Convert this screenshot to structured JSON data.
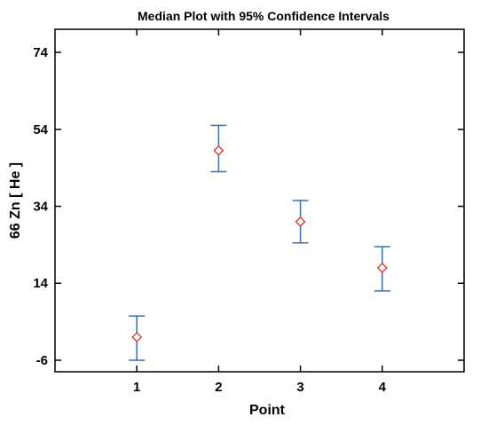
{
  "chart_data": {
    "type": "scatter",
    "title": "Median Plot with 95% Confidence Intervals",
    "xlabel": "Point",
    "ylabel": "66 Zn [ He ]",
    "xlim": [
      0,
      5
    ],
    "ylim": [
      -9,
      80
    ],
    "x_ticks": [
      "1",
      "2",
      "3",
      "4"
    ],
    "y_ticks": [
      "-6",
      "14",
      "34",
      "54",
      "74"
    ],
    "grid": false,
    "series": [
      {
        "points": [
          {
            "x": 1,
            "median": 0,
            "lower": -6,
            "upper": 5.5
          },
          {
            "x": 2,
            "median": 48.5,
            "lower": 43,
            "upper": 55
          },
          {
            "x": 3,
            "median": 30,
            "lower": 24.5,
            "upper": 35.5
          },
          {
            "x": 4,
            "median": 18,
            "lower": 12,
            "upper": 23.5
          }
        ]
      }
    ],
    "colors": {
      "error_bar": "#3b6db3",
      "marker": "#d9302b",
      "axis": "#000000"
    }
  }
}
